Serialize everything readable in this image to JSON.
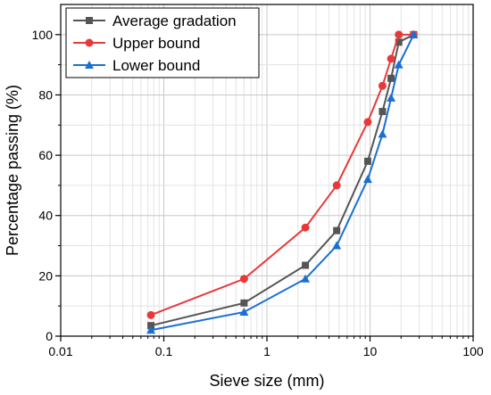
{
  "chart_data": {
    "type": "line",
    "xlabel": "Sieve size (mm)",
    "ylabel": "Percentage passing (%)",
    "x_scale": "log",
    "xlim": [
      0.01,
      100
    ],
    "ylim": [
      0,
      110
    ],
    "x_ticks": [
      0.01,
      0.1,
      1,
      10,
      100
    ],
    "x_tick_labels": [
      "0.01",
      "0.1",
      "1",
      "10",
      "100"
    ],
    "y_ticks": [
      0,
      20,
      40,
      60,
      80,
      100
    ],
    "y_tick_labels": [
      "0",
      "20",
      "40",
      "60",
      "80",
      "100"
    ],
    "grid": true,
    "legend_position": "top-left",
    "series": [
      {
        "name": "Average gradation",
        "color": "#555555",
        "marker": "square",
        "x": [
          0.075,
          0.6,
          2.36,
          4.75,
          9.5,
          13.2,
          16,
          19,
          26.5
        ],
        "y": [
          3.5,
          11,
          23.5,
          35,
          58,
          74.5,
          85.5,
          97.5,
          100
        ]
      },
      {
        "name": "Upper bound",
        "color": "#e8393a",
        "marker": "circle",
        "x": [
          0.075,
          0.6,
          2.36,
          4.75,
          9.5,
          13.2,
          16,
          19,
          26.5
        ],
        "y": [
          7,
          19,
          36,
          50,
          71,
          83,
          92,
          100,
          100
        ]
      },
      {
        "name": "Lower bound",
        "color": "#1a6fd4",
        "marker": "triangle",
        "x": [
          0.075,
          0.6,
          2.36,
          4.75,
          9.5,
          13.2,
          16,
          19,
          26.5
        ],
        "y": [
          2,
          8,
          19,
          30,
          52,
          67,
          79,
          90,
          100
        ]
      }
    ]
  }
}
